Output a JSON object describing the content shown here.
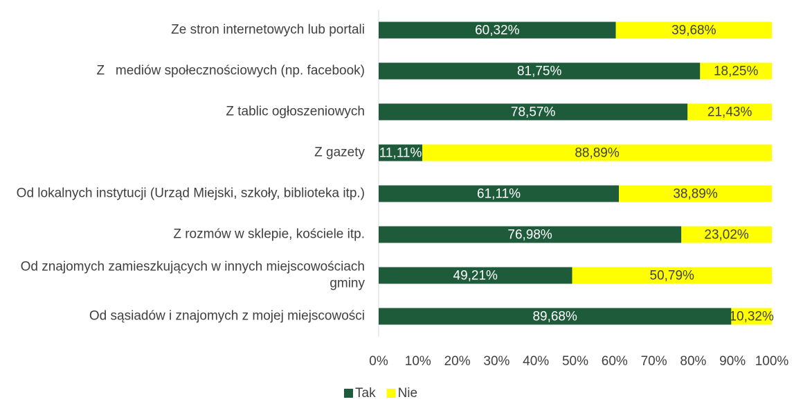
{
  "chart_data": {
    "type": "stacked_bar_horizontal",
    "categories": [
      "Ze stron internetowych lub portali",
      "Z   mediów społecznościowych (np. facebook)",
      "Z tablic ogłoszeniowych",
      "Z gazety",
      "Od lokalnych instytucji (Urząd Miejski, szkoły, biblioteka itp.)",
      "Z rozmów w sklepie, kościele itp.",
      "Od znajomych zamieszkujących w innych miejscowościach gminy",
      "Od sąsiadów i znajomych z mojej miejscowości"
    ],
    "series": [
      {
        "name": "Tak",
        "color": "#1e5b3b",
        "values": [
          60.32,
          81.75,
          78.57,
          11.11,
          61.11,
          76.98,
          49.21,
          89.68
        ],
        "value_labels": [
          "60,32%",
          "81,75%",
          "78,57%",
          "11,11%",
          "61,11%",
          "76,98%",
          "49,21%",
          "89,68%"
        ]
      },
      {
        "name": "Nie",
        "color": "#ffff00",
        "values": [
          39.68,
          18.25,
          21.43,
          88.89,
          38.89,
          23.02,
          50.79,
          10.32
        ],
        "value_labels": [
          "39,68%",
          "18,25%",
          "21,43%",
          "88,89%",
          "38,89%",
          "23,02%",
          "50,79%",
          "10,32%"
        ]
      }
    ],
    "xlim": [
      0,
      100
    ],
    "xticks": [
      {
        "value": 0,
        "label": "0%"
      },
      {
        "value": 10,
        "label": "10%"
      },
      {
        "value": 20,
        "label": "20%"
      },
      {
        "value": 30,
        "label": "30%"
      },
      {
        "value": 40,
        "label": "40%"
      },
      {
        "value": 50,
        "label": "50%"
      },
      {
        "value": 60,
        "label": "60%"
      },
      {
        "value": 70,
        "label": "70%"
      },
      {
        "value": 80,
        "label": "80%"
      },
      {
        "value": 90,
        "label": "90%"
      },
      {
        "value": 100,
        "label": "100%"
      }
    ],
    "legend": "bottom"
  }
}
